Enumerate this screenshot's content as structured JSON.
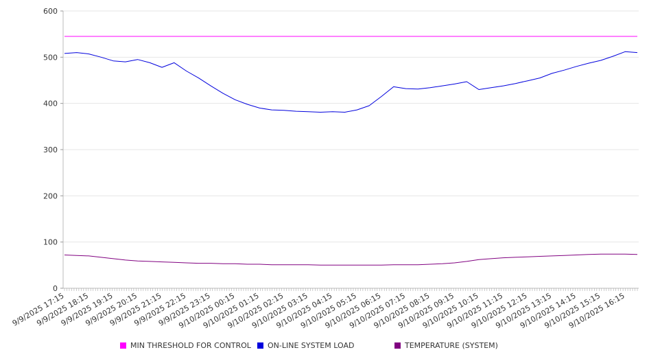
{
  "chart_data": {
    "type": "line",
    "title": "",
    "xlabel": "",
    "ylabel": "",
    "ylim": [
      0,
      600
    ],
    "yticks": [
      0,
      100,
      200,
      300,
      400,
      500,
      600
    ],
    "grid": true,
    "legend_position": "bottom",
    "xtick_labels": [
      "9/9/2025 17:15",
      "9/9/2025 18:15",
      "9/9/2025 19:15",
      "9/9/2025 20:15",
      "9/9/2025 21:15",
      "9/9/2025 22:15",
      "9/9/2025 23:15",
      "9/10/2025 00:15",
      "9/10/2025 01:15",
      "9/10/2025 02:15",
      "9/10/2025 03:15",
      "9/10/2025 04:15",
      "9/10/2025 05:15",
      "9/10/2025 06:15",
      "9/10/2025 07:15",
      "9/10/2025 08:15",
      "9/10/2025 09:15",
      "9/10/2025 10:15",
      "9/10/2025 11:15",
      "9/10/2025 12:15",
      "9/10/2025 13:15",
      "9/10/2025 14:15",
      "9/10/2025 15:15",
      "9/10/2025 16:15"
    ],
    "x": [
      "9/9/2025 17:15",
      "9/9/2025 17:45",
      "9/9/2025 18:15",
      "9/9/2025 18:45",
      "9/9/2025 19:15",
      "9/9/2025 19:45",
      "9/9/2025 20:15",
      "9/9/2025 20:45",
      "9/9/2025 21:15",
      "9/9/2025 21:45",
      "9/9/2025 22:15",
      "9/9/2025 22:45",
      "9/9/2025 23:15",
      "9/9/2025 23:45",
      "9/10/2025 00:15",
      "9/10/2025 00:45",
      "9/10/2025 01:15",
      "9/10/2025 01:45",
      "9/10/2025 02:15",
      "9/10/2025 02:45",
      "9/10/2025 03:15",
      "9/10/2025 03:45",
      "9/10/2025 04:15",
      "9/10/2025 04:45",
      "9/10/2025 05:15",
      "9/10/2025 05:45",
      "9/10/2025 06:15",
      "9/10/2025 06:45",
      "9/10/2025 07:15",
      "9/10/2025 07:45",
      "9/10/2025 08:15",
      "9/10/2025 08:45",
      "9/10/2025 09:15",
      "9/10/2025 09:45",
      "9/10/2025 10:15",
      "9/10/2025 10:45",
      "9/10/2025 11:15",
      "9/10/2025 11:45",
      "9/10/2025 12:15",
      "9/10/2025 12:45",
      "9/10/2025 13:15",
      "9/10/2025 13:45",
      "9/10/2025 14:15",
      "9/10/2025 14:45",
      "9/10/2025 15:15",
      "9/10/2025 15:45",
      "9/10/2025 16:15",
      "9/10/2025 16:45"
    ],
    "series": [
      {
        "name": "MIN THRESHOLD FOR CONTROL",
        "color": "#ff00ff",
        "values": [
          545,
          545,
          545,
          545,
          545,
          545,
          545,
          545,
          545,
          545,
          545,
          545,
          545,
          545,
          545,
          545,
          545,
          545,
          545,
          545,
          545,
          545,
          545,
          545,
          545,
          545,
          545,
          545,
          545,
          545,
          545,
          545,
          545,
          545,
          545,
          545,
          545,
          545,
          545,
          545,
          545,
          545,
          545,
          545,
          545,
          545,
          545,
          545
        ]
      },
      {
        "name": "ON-LINE SYSTEM LOAD",
        "color": "#0000dd",
        "values": [
          508,
          510,
          507,
          500,
          492,
          490,
          495,
          488,
          478,
          488,
          470,
          455,
          438,
          422,
          408,
          398,
          390,
          386,
          385,
          383,
          382,
          381,
          382,
          381,
          386,
          395,
          415,
          436,
          432,
          431,
          434,
          438,
          442,
          447,
          430,
          434,
          438,
          443,
          449,
          455,
          465,
          472,
          480,
          487,
          493,
          502,
          512,
          510
        ]
      },
      {
        "name": "TEMPERATURE (SYSTEM)",
        "color": "#800080",
        "values": [
          72,
          71,
          70,
          67,
          64,
          61,
          59,
          58,
          57,
          56,
          55,
          54,
          54,
          53,
          53,
          52,
          52,
          51,
          51,
          51,
          51,
          50,
          50,
          50,
          50,
          50,
          50,
          51,
          51,
          51,
          52,
          53,
          55,
          58,
          62,
          64,
          66,
          67,
          68,
          69,
          70,
          71,
          72,
          73,
          74,
          74,
          74,
          73
        ]
      }
    ]
  }
}
